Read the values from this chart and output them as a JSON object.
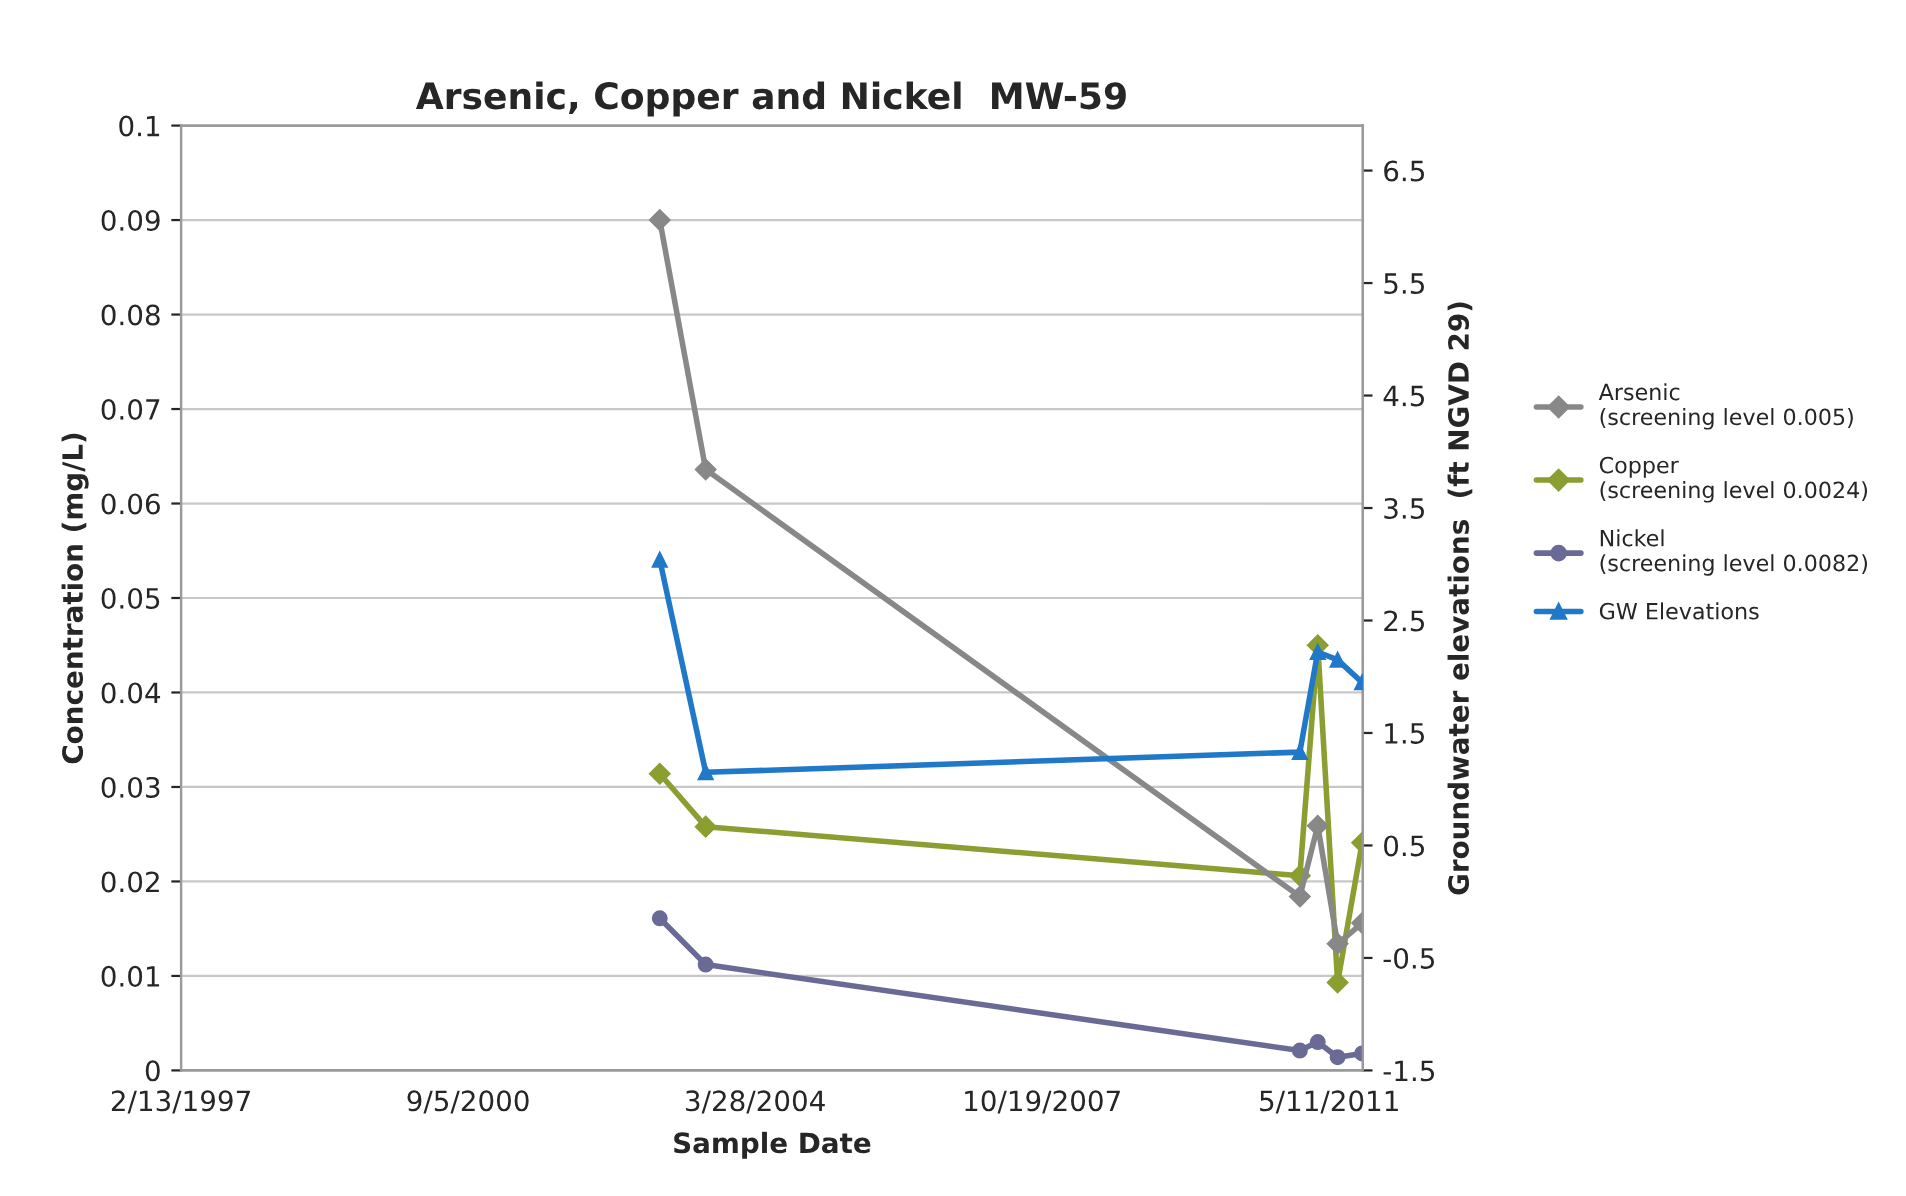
{
  "chart_data": {
    "type": "line",
    "title": "Arsenic, Copper and Nickel  MW-59",
    "xlabel": "Sample Date",
    "ylabel": "Concentration (mg/L)",
    "y2label": "Groundwater elevations  (ft NGVD 29)",
    "xlim": [
      "1997-02-13",
      "2011-10-10"
    ],
    "xticks": [
      {
        "value": "1997-02-13",
        "label": "2/13/1997"
      },
      {
        "value": "2000-09-05",
        "label": "9/5/2000"
      },
      {
        "value": "2004-03-28",
        "label": "3/28/2004"
      },
      {
        "value": "2007-10-19",
        "label": "10/19/2007"
      },
      {
        "value": "2011-05-11",
        "label": "5/11/2011"
      }
    ],
    "ylim": [
      0,
      0.1
    ],
    "yticks": [
      0,
      0.01,
      0.02,
      0.03,
      0.04,
      0.05,
      0.06,
      0.07,
      0.08,
      0.09,
      0.1
    ],
    "y2lim": [
      -1.5,
      6.9
    ],
    "y2ticks": [
      -1.5,
      -0.5,
      0.5,
      1.5,
      2.5,
      3.5,
      4.5,
      5.5,
      6.5
    ],
    "grid": "y",
    "legend": "right",
    "series": [
      {
        "name": "Arsenic\n(screening level 0.005)",
        "color": "#888888",
        "marker": "diamond",
        "x": [
          "2003-01-21",
          "2003-08-17",
          "2010-12-29",
          "2011-03-20",
          "2011-06-18",
          "2011-10-07"
        ],
        "values": [
          0.09,
          0.0636,
          0.0184,
          0.0259,
          0.0134,
          0.0156
        ]
      },
      {
        "name": "Copper\n(screening level 0.0024)",
        "color": "#8a9e32",
        "marker": "diamond",
        "x": [
          "2003-01-21",
          "2003-08-17",
          "2010-12-29",
          "2011-03-20",
          "2011-06-18",
          "2011-10-07"
        ],
        "values": [
          0.0314,
          0.0258,
          0.0206,
          0.045,
          0.0093,
          0.0241
        ]
      },
      {
        "name": "Nickel\n(screening level 0.0082)",
        "color": "#6a6a96",
        "marker": "circle",
        "x": [
          "2003-01-21",
          "2003-08-17",
          "2010-12-29",
          "2011-03-20",
          "2011-06-18",
          "2011-10-07"
        ],
        "values": [
          0.0161,
          0.0112,
          0.0021,
          0.003,
          0.0014,
          0.0018
        ]
      },
      {
        "name": "GW Elevations",
        "color": "#1f78c8",
        "marker": "triangle",
        "axis": "y2",
        "x": [
          "2003-01-21",
          "2003-08-17",
          "2010-12-29",
          "2011-03-20",
          "2011-06-18",
          "2011-10-07"
        ],
        "values": [
          3.04,
          1.15,
          1.33,
          2.22,
          2.15,
          1.95
        ]
      }
    ]
  }
}
